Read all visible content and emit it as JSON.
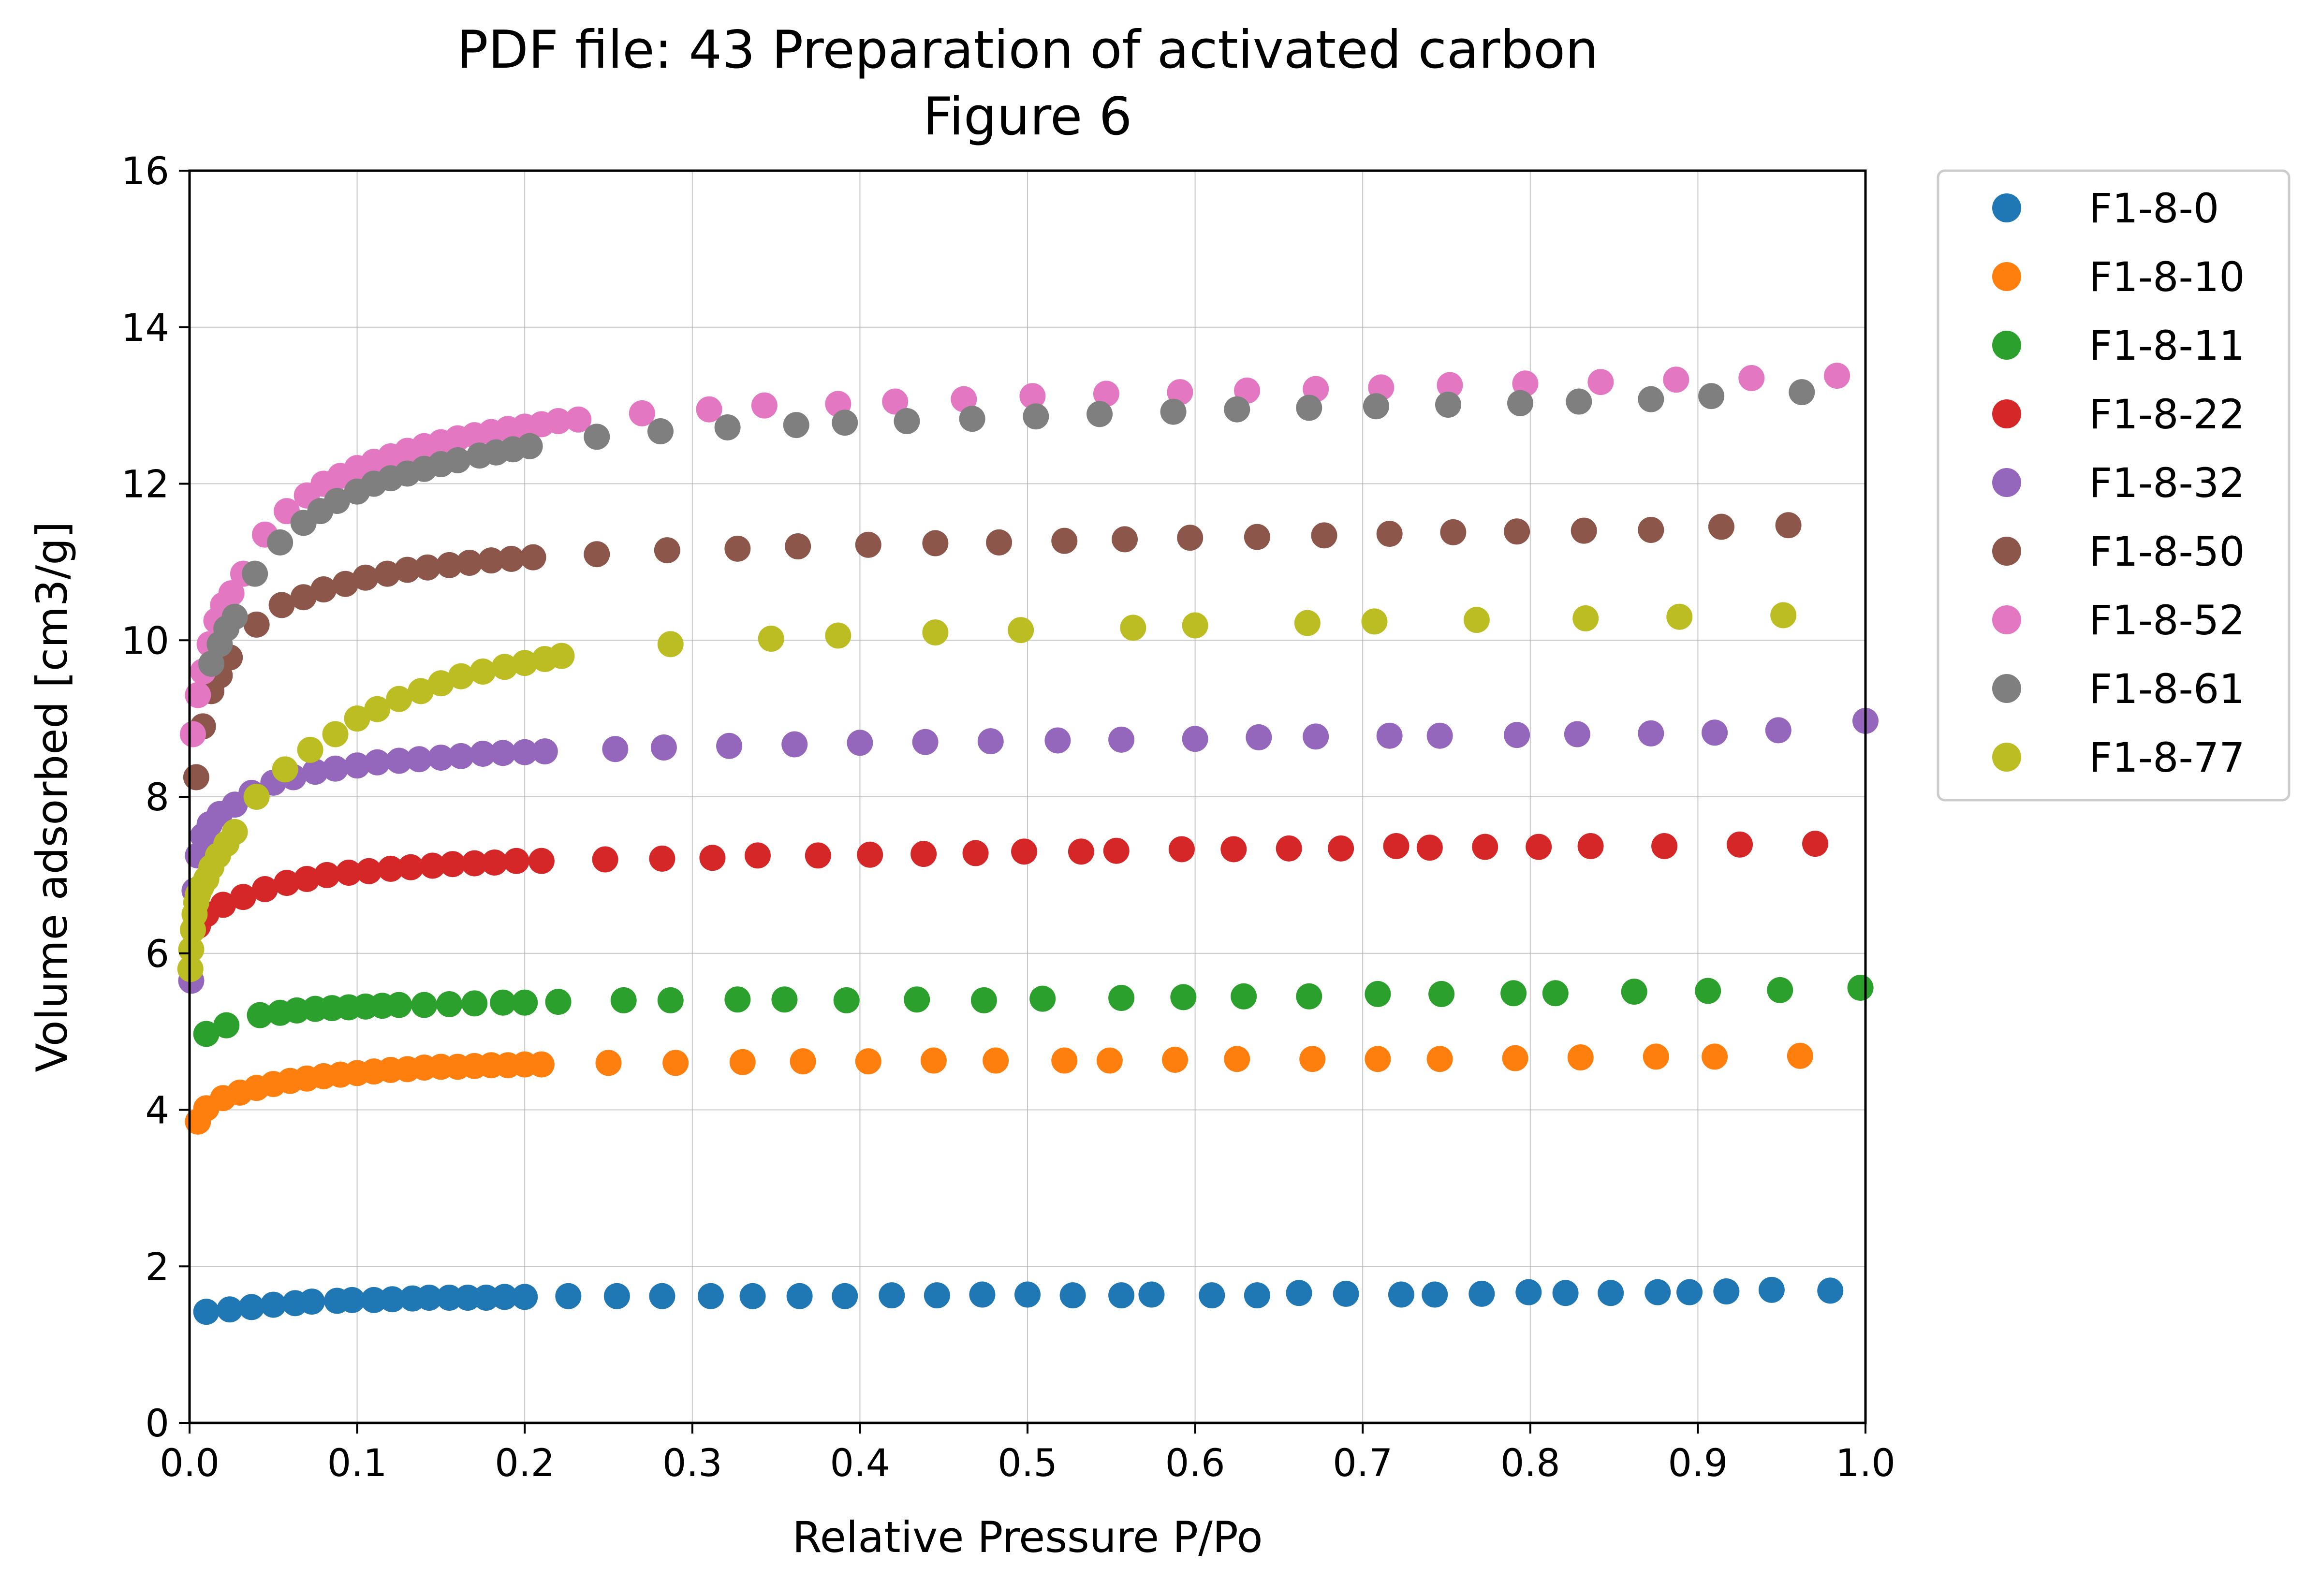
{
  "chart_data": {
    "type": "scatter",
    "title": "PDF file: 43 Preparation of activated carbon",
    "subtitle": "Figure 6",
    "xlabel": "Relative Pressure P/Po",
    "ylabel": "Volume adsorbed [cm3/g]",
    "xlim": [
      0,
      1.0
    ],
    "ylim": [
      0,
      16
    ],
    "xticks": [
      0,
      0.1,
      0.2,
      0.3,
      0.4,
      0.5,
      0.6,
      0.7,
      0.8,
      0.9,
      1.0
    ],
    "xtick_labels": [
      "0.0",
      "0.1",
      "0.2",
      "0.3",
      "0.4",
      "0.5",
      "0.6",
      "0.7",
      "0.8",
      "0.9",
      "1.0"
    ],
    "yticks": [
      0,
      2,
      4,
      6,
      8,
      10,
      12,
      14,
      16
    ],
    "ytick_labels": [
      "0",
      "2",
      "4",
      "6",
      "8",
      "10",
      "12",
      "14",
      "16"
    ],
    "grid": true,
    "legend_position": "outside-right-top",
    "series": [
      {
        "name": "F1-8-0",
        "color": "#1f77b4",
        "x": [
          0.01,
          0.024,
          0.037,
          0.05,
          0.063,
          0.073,
          0.088,
          0.097,
          0.11,
          0.121,
          0.133,
          0.143,
          0.155,
          0.166,
          0.177,
          0.188,
          0.2,
          0.226,
          0.255,
          0.282,
          0.311,
          0.336,
          0.364,
          0.391,
          0.419,
          0.446,
          0.473,
          0.5,
          0.527,
          0.556,
          0.574,
          0.61,
          0.637,
          0.662,
          0.69,
          0.723,
          0.743,
          0.771,
          0.799,
          0.821,
          0.848,
          0.876,
          0.895,
          0.917,
          0.944,
          0.979
        ],
        "y": [
          1.42,
          1.45,
          1.48,
          1.51,
          1.53,
          1.55,
          1.56,
          1.57,
          1.57,
          1.58,
          1.59,
          1.6,
          1.6,
          1.6,
          1.6,
          1.61,
          1.61,
          1.62,
          1.62,
          1.62,
          1.62,
          1.62,
          1.62,
          1.62,
          1.63,
          1.63,
          1.64,
          1.64,
          1.63,
          1.63,
          1.64,
          1.63,
          1.63,
          1.66,
          1.65,
          1.64,
          1.64,
          1.65,
          1.67,
          1.66,
          1.66,
          1.67,
          1.67,
          1.68,
          1.7,
          1.69
        ]
      },
      {
        "name": "F1-8-10",
        "color": "#ff7f0e",
        "x": [
          0.005,
          0.01,
          0.02,
          0.03,
          0.04,
          0.05,
          0.06,
          0.07,
          0.08,
          0.09,
          0.1,
          0.11,
          0.12,
          0.13,
          0.14,
          0.15,
          0.16,
          0.17,
          0.18,
          0.19,
          0.2,
          0.21,
          0.25,
          0.29,
          0.33,
          0.366,
          0.405,
          0.444,
          0.481,
          0.522,
          0.549,
          0.588,
          0.625,
          0.67,
          0.709,
          0.746,
          0.791,
          0.83,
          0.875,
          0.91,
          0.961
        ],
        "y": [
          3.85,
          4.02,
          4.15,
          4.22,
          4.28,
          4.33,
          4.37,
          4.4,
          4.43,
          4.45,
          4.47,
          4.49,
          4.51,
          4.52,
          4.54,
          4.55,
          4.55,
          4.56,
          4.57,
          4.57,
          4.58,
          4.58,
          4.6,
          4.6,
          4.61,
          4.62,
          4.62,
          4.63,
          4.63,
          4.63,
          4.63,
          4.64,
          4.65,
          4.65,
          4.65,
          4.65,
          4.66,
          4.67,
          4.68,
          4.68,
          4.69
        ]
      },
      {
        "name": "F1-8-11",
        "color": "#2ca02c",
        "x": [
          0.01,
          0.022,
          0.042,
          0.054,
          0.064,
          0.075,
          0.085,
          0.095,
          0.105,
          0.115,
          0.125,
          0.14,
          0.155,
          0.17,
          0.187,
          0.2,
          0.22,
          0.259,
          0.287,
          0.327,
          0.355,
          0.392,
          0.434,
          0.474,
          0.509,
          0.556,
          0.593,
          0.629,
          0.668,
          0.709,
          0.747,
          0.79,
          0.815,
          0.862,
          0.906,
          0.949,
          0.997
        ],
        "y": [
          4.97,
          5.08,
          5.21,
          5.24,
          5.27,
          5.29,
          5.3,
          5.31,
          5.32,
          5.33,
          5.34,
          5.34,
          5.35,
          5.36,
          5.37,
          5.37,
          5.38,
          5.4,
          5.4,
          5.41,
          5.41,
          5.4,
          5.41,
          5.4,
          5.42,
          5.43,
          5.44,
          5.45,
          5.45,
          5.48,
          5.48,
          5.49,
          5.49,
          5.51,
          5.52,
          5.53,
          5.56
        ]
      },
      {
        "name": "F1-8-22",
        "color": "#d62728",
        "x": [
          0.005,
          0.01,
          0.02,
          0.032,
          0.045,
          0.058,
          0.07,
          0.082,
          0.095,
          0.107,
          0.12,
          0.132,
          0.145,
          0.157,
          0.17,
          0.182,
          0.195,
          0.21,
          0.248,
          0.282,
          0.312,
          0.339,
          0.375,
          0.406,
          0.438,
          0.469,
          0.498,
          0.532,
          0.553,
          0.592,
          0.623,
          0.656,
          0.687,
          0.72,
          0.74,
          0.773,
          0.805,
          0.836,
          0.88,
          0.925,
          0.97
        ],
        "y": [
          6.35,
          6.5,
          6.62,
          6.72,
          6.82,
          6.9,
          6.95,
          7.0,
          7.03,
          7.05,
          7.08,
          7.1,
          7.12,
          7.14,
          7.15,
          7.16,
          7.18,
          7.18,
          7.2,
          7.21,
          7.22,
          7.25,
          7.25,
          7.26,
          7.27,
          7.28,
          7.3,
          7.3,
          7.31,
          7.33,
          7.33,
          7.34,
          7.34,
          7.37,
          7.35,
          7.36,
          7.36,
          7.37,
          7.37,
          7.39,
          7.4
        ]
      },
      {
        "name": "F1-8-32",
        "color": "#9467bd",
        "x": [
          0.001,
          0.003,
          0.005,
          0.008,
          0.012,
          0.018,
          0.027,
          0.037,
          0.05,
          0.062,
          0.075,
          0.087,
          0.1,
          0.112,
          0.125,
          0.137,
          0.15,
          0.162,
          0.175,
          0.187,
          0.2,
          0.212,
          0.254,
          0.283,
          0.322,
          0.361,
          0.4,
          0.439,
          0.478,
          0.518,
          0.556,
          0.6,
          0.638,
          0.672,
          0.716,
          0.746,
          0.792,
          0.828,
          0.872,
          0.91,
          0.948,
          1.0
        ],
        "y": [
          5.65,
          6.8,
          7.25,
          7.5,
          7.65,
          7.78,
          7.9,
          8.05,
          8.18,
          8.25,
          8.32,
          8.36,
          8.4,
          8.44,
          8.46,
          8.48,
          8.5,
          8.52,
          8.55,
          8.56,
          8.57,
          8.58,
          8.61,
          8.63,
          8.65,
          8.67,
          8.69,
          8.7,
          8.71,
          8.72,
          8.73,
          8.74,
          8.76,
          8.77,
          8.78,
          8.78,
          8.79,
          8.8,
          8.81,
          8.82,
          8.85,
          8.97
        ]
      },
      {
        "name": "F1-8-50",
        "color": "#8c564b",
        "x": [
          0.004,
          0.008,
          0.013,
          0.018,
          0.024,
          0.04,
          0.055,
          0.068,
          0.08,
          0.093,
          0.105,
          0.118,
          0.13,
          0.142,
          0.155,
          0.167,
          0.18,
          0.192,
          0.205,
          0.243,
          0.285,
          0.327,
          0.363,
          0.405,
          0.445,
          0.483,
          0.522,
          0.558,
          0.597,
          0.637,
          0.677,
          0.716,
          0.754,
          0.792,
          0.832,
          0.872,
          0.914,
          0.954
        ],
        "y": [
          8.25,
          8.9,
          9.35,
          9.55,
          9.78,
          10.2,
          10.45,
          10.55,
          10.65,
          10.72,
          10.8,
          10.85,
          10.9,
          10.93,
          10.96,
          10.99,
          11.02,
          11.04,
          11.06,
          11.1,
          11.15,
          11.17,
          11.2,
          11.22,
          11.24,
          11.25,
          11.27,
          11.29,
          11.31,
          11.32,
          11.34,
          11.36,
          11.38,
          11.39,
          11.4,
          11.41,
          11.45,
          11.47
        ]
      },
      {
        "name": "F1-8-52",
        "color": "#e377c2",
        "x": [
          0.002,
          0.005,
          0.008,
          0.012,
          0.016,
          0.02,
          0.025,
          0.032,
          0.045,
          0.058,
          0.07,
          0.08,
          0.09,
          0.1,
          0.11,
          0.12,
          0.13,
          0.14,
          0.15,
          0.16,
          0.17,
          0.18,
          0.19,
          0.2,
          0.21,
          0.22,
          0.232,
          0.27,
          0.31,
          0.343,
          0.387,
          0.421,
          0.462,
          0.503,
          0.547,
          0.591,
          0.631,
          0.672,
          0.711,
          0.752,
          0.797,
          0.842,
          0.887,
          0.932,
          0.983
        ],
        "y": [
          8.8,
          9.3,
          9.6,
          9.95,
          10.25,
          10.45,
          10.6,
          10.85,
          11.35,
          11.65,
          11.85,
          12.0,
          12.1,
          12.2,
          12.28,
          12.35,
          12.42,
          12.48,
          12.53,
          12.58,
          12.62,
          12.66,
          12.7,
          12.73,
          12.76,
          12.8,
          12.82,
          12.9,
          12.95,
          13.0,
          13.02,
          13.05,
          13.08,
          13.12,
          13.15,
          13.17,
          13.19,
          13.21,
          13.23,
          13.26,
          13.28,
          13.3,
          13.33,
          13.35,
          13.38
        ]
      },
      {
        "name": "F1-8-61",
        "color": "#7f7f7f",
        "x": [
          0.013,
          0.018,
          0.022,
          0.027,
          0.039,
          0.054,
          0.068,
          0.078,
          0.088,
          0.1,
          0.11,
          0.12,
          0.13,
          0.14,
          0.15,
          0.16,
          0.173,
          0.183,
          0.193,
          0.203,
          0.243,
          0.281,
          0.321,
          0.362,
          0.391,
          0.428,
          0.467,
          0.505,
          0.543,
          0.587,
          0.625,
          0.668,
          0.708,
          0.751,
          0.794,
          0.829,
          0.872,
          0.908,
          0.962
        ],
        "y": [
          9.7,
          9.95,
          10.15,
          10.3,
          10.85,
          11.25,
          11.5,
          11.65,
          11.78,
          11.9,
          12.0,
          12.07,
          12.13,
          12.19,
          12.25,
          12.3,
          12.36,
          12.4,
          12.44,
          12.48,
          12.6,
          12.67,
          12.72,
          12.75,
          12.78,
          12.8,
          12.83,
          12.86,
          12.89,
          12.92,
          12.95,
          12.97,
          12.99,
          13.01,
          13.03,
          13.05,
          13.08,
          13.12,
          13.17
        ]
      },
      {
        "name": "F1-8-77",
        "color": "#bcbd22",
        "x": [
          0.0005,
          0.001,
          0.002,
          0.003,
          0.004,
          0.005,
          0.007,
          0.01,
          0.013,
          0.017,
          0.022,
          0.027,
          0.04,
          0.057,
          0.072,
          0.087,
          0.1,
          0.112,
          0.125,
          0.138,
          0.15,
          0.162,
          0.175,
          0.188,
          0.2,
          0.212,
          0.222,
          0.287,
          0.347,
          0.387,
          0.445,
          0.496,
          0.563,
          0.6,
          0.667,
          0.707,
          0.768,
          0.833,
          0.889,
          0.951
        ],
        "y": [
          5.8,
          6.05,
          6.3,
          6.5,
          6.65,
          6.75,
          6.85,
          6.95,
          7.1,
          7.25,
          7.4,
          7.55,
          8.0,
          8.35,
          8.6,
          8.8,
          9.0,
          9.12,
          9.25,
          9.35,
          9.45,
          9.54,
          9.6,
          9.66,
          9.71,
          9.76,
          9.8,
          9.95,
          10.02,
          10.06,
          10.1,
          10.13,
          10.16,
          10.19,
          10.22,
          10.24,
          10.26,
          10.28,
          10.3,
          10.32
        ]
      }
    ]
  }
}
